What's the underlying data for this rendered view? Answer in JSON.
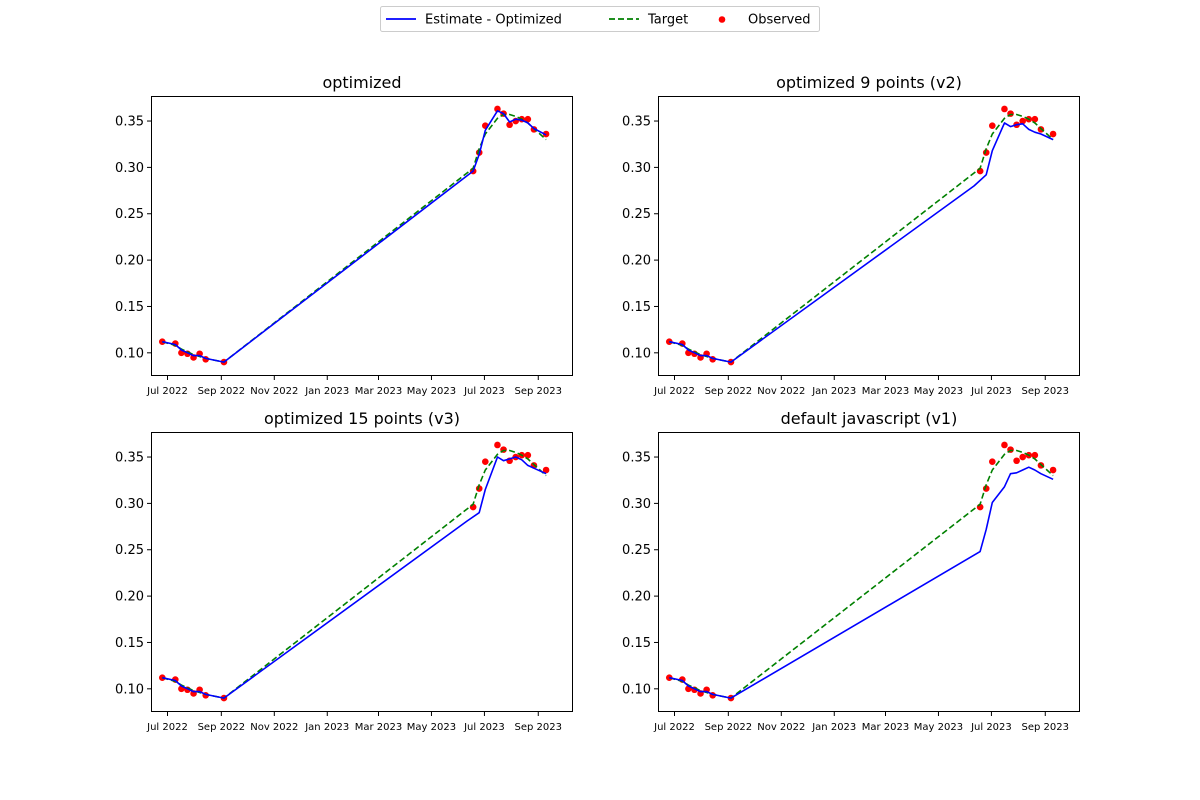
{
  "legend": {
    "placement": "top-center",
    "entries": [
      {
        "label": "Estimate - Optimized",
        "style": "solid-line",
        "color": "#0000ff"
      },
      {
        "label": "Target",
        "style": "dashed-line",
        "color": "#008000"
      },
      {
        "label": "Observed",
        "style": "marker",
        "color": "#ff0000"
      }
    ]
  },
  "chart_data": [
    {
      "type": "line",
      "title": "optimized",
      "xlabel": "",
      "ylabel": "",
      "xlim": [
        "2022-06-12",
        "2023-10-11"
      ],
      "ylim": [
        0.075,
        0.377
      ],
      "x_ticks": [
        {
          "date": "2022-07-01",
          "label": "Jul 2022"
        },
        {
          "date": "2022-09-01",
          "label": "Sep 2022"
        },
        {
          "date": "2022-11-01",
          "label": "Nov 2022"
        },
        {
          "date": "2023-01-01",
          "label": "Jan 2023"
        },
        {
          "date": "2023-03-01",
          "label": "Mar 2023"
        },
        {
          "date": "2023-05-01",
          "label": "May 2023"
        },
        {
          "date": "2023-07-01",
          "label": "Jul 2023"
        },
        {
          "date": "2023-09-01",
          "label": "Sep 2023"
        }
      ],
      "y_ticks": [
        0.1,
        0.15,
        0.2,
        0.25,
        0.3,
        0.35
      ],
      "y_tick_labels": [
        "0.10",
        "0.15",
        "0.20",
        "0.25",
        "0.30",
        "0.35"
      ],
      "grid": false,
      "series": [
        {
          "name": "Observed",
          "kind": "scatter",
          "color": "#ff0000",
          "x": [
            "2022-06-25",
            "2022-07-10",
            "2022-07-17",
            "2022-07-24",
            "2022-07-31",
            "2022-08-07",
            "2022-08-14",
            "2022-09-04",
            "2023-06-18",
            "2023-06-25",
            "2023-07-02",
            "2023-07-16",
            "2023-07-23",
            "2023-07-30",
            "2023-08-06",
            "2023-08-13",
            "2023-08-20",
            "2023-08-27",
            "2023-09-10"
          ],
          "y": [
            0.112,
            0.11,
            0.1,
            0.099,
            0.095,
            0.099,
            0.093,
            0.09,
            0.296,
            0.316,
            0.345,
            0.363,
            0.358,
            0.346,
            0.35,
            0.352,
            0.352,
            0.341,
            0.336
          ]
        },
        {
          "name": "Target",
          "kind": "dashed-line",
          "color": "#008000",
          "x": [
            "2022-06-25",
            "2022-07-10",
            "2022-07-17",
            "2022-07-24",
            "2022-07-31",
            "2022-08-07",
            "2022-08-14",
            "2022-09-04",
            "2023-06-18",
            "2023-06-25",
            "2023-07-02",
            "2023-07-16",
            "2023-07-23",
            "2023-07-30",
            "2023-08-06",
            "2023-08-13",
            "2023-08-20",
            "2023-08-27",
            "2023-09-10"
          ],
          "y": [
            0.112,
            0.108,
            0.104,
            0.101,
            0.098,
            0.096,
            0.094,
            0.09,
            0.299,
            0.32,
            0.336,
            0.353,
            0.357,
            0.357,
            0.355,
            0.352,
            0.348,
            0.342,
            0.33
          ]
        },
        {
          "name": "Estimate - Optimized",
          "kind": "solid-line",
          "color": "#0000ff",
          "x": [
            "2022-06-25",
            "2022-07-10",
            "2022-07-17",
            "2022-07-24",
            "2022-07-31",
            "2022-08-07",
            "2022-08-14",
            "2022-09-04",
            "2023-06-18",
            "2023-06-25",
            "2023-07-02",
            "2023-07-16",
            "2023-07-23",
            "2023-07-30",
            "2023-08-06",
            "2023-08-13",
            "2023-08-20",
            "2023-08-27",
            "2023-09-10"
          ],
          "y": [
            0.112,
            0.109,
            0.103,
            0.1,
            0.097,
            0.097,
            0.094,
            0.09,
            0.296,
            0.314,
            0.34,
            0.361,
            0.358,
            0.349,
            0.352,
            0.351,
            0.348,
            0.342,
            0.335
          ]
        }
      ]
    },
    {
      "type": "line",
      "title": "optimized 9 points (v2)",
      "xlabel": "",
      "ylabel": "",
      "xlim": [
        "2022-06-12",
        "2023-10-11"
      ],
      "ylim": [
        0.075,
        0.377
      ],
      "x_ticks": [
        {
          "date": "2022-07-01",
          "label": "Jul 2022"
        },
        {
          "date": "2022-09-01",
          "label": "Sep 2022"
        },
        {
          "date": "2022-11-01",
          "label": "Nov 2022"
        },
        {
          "date": "2023-01-01",
          "label": "Jan 2023"
        },
        {
          "date": "2023-03-01",
          "label": "Mar 2023"
        },
        {
          "date": "2023-05-01",
          "label": "May 2023"
        },
        {
          "date": "2023-07-01",
          "label": "Jul 2023"
        },
        {
          "date": "2023-09-01",
          "label": "Sep 2023"
        }
      ],
      "y_ticks": [
        0.1,
        0.15,
        0.2,
        0.25,
        0.3,
        0.35
      ],
      "y_tick_labels": [
        "0.10",
        "0.15",
        "0.20",
        "0.25",
        "0.30",
        "0.35"
      ],
      "grid": false,
      "series": [
        {
          "name": "Observed",
          "kind": "scatter",
          "color": "#ff0000",
          "x": [
            "2022-06-25",
            "2022-07-10",
            "2022-07-17",
            "2022-07-24",
            "2022-07-31",
            "2022-08-07",
            "2022-08-14",
            "2022-09-04",
            "2023-06-18",
            "2023-06-25",
            "2023-07-02",
            "2023-07-16",
            "2023-07-23",
            "2023-07-30",
            "2023-08-06",
            "2023-08-13",
            "2023-08-20",
            "2023-08-27",
            "2023-09-10"
          ],
          "y": [
            0.112,
            0.11,
            0.1,
            0.099,
            0.095,
            0.099,
            0.093,
            0.09,
            0.296,
            0.316,
            0.345,
            0.363,
            0.358,
            0.346,
            0.35,
            0.352,
            0.352,
            0.341,
            0.336
          ]
        },
        {
          "name": "Target",
          "kind": "dashed-line",
          "color": "#008000",
          "x": [
            "2022-06-25",
            "2022-07-10",
            "2022-07-17",
            "2022-07-24",
            "2022-07-31",
            "2022-08-07",
            "2022-08-14",
            "2022-09-04",
            "2023-06-18",
            "2023-06-25",
            "2023-07-02",
            "2023-07-16",
            "2023-07-23",
            "2023-07-30",
            "2023-08-06",
            "2023-08-13",
            "2023-08-20",
            "2023-08-27",
            "2023-09-10"
          ],
          "y": [
            0.112,
            0.108,
            0.104,
            0.101,
            0.098,
            0.096,
            0.094,
            0.09,
            0.299,
            0.32,
            0.336,
            0.353,
            0.357,
            0.357,
            0.355,
            0.352,
            0.348,
            0.342,
            0.33
          ]
        },
        {
          "name": "Estimate - Optimized",
          "kind": "solid-line",
          "color": "#0000ff",
          "x": [
            "2022-06-25",
            "2022-07-10",
            "2022-07-17",
            "2022-07-24",
            "2022-07-31",
            "2022-08-07",
            "2022-08-14",
            "2022-09-04",
            "2023-06-11",
            "2023-06-25",
            "2023-07-02",
            "2023-07-16",
            "2023-07-23",
            "2023-07-30",
            "2023-08-06",
            "2023-08-13",
            "2023-08-20",
            "2023-08-27",
            "2023-09-10"
          ],
          "y": [
            0.112,
            0.109,
            0.103,
            0.1,
            0.097,
            0.097,
            0.094,
            0.09,
            0.28,
            0.292,
            0.318,
            0.348,
            0.344,
            0.346,
            0.347,
            0.341,
            0.338,
            0.336,
            0.33
          ]
        }
      ]
    },
    {
      "type": "line",
      "title": "optimized 15 points (v3)",
      "xlabel": "",
      "ylabel": "",
      "xlim": [
        "2022-06-12",
        "2023-10-11"
      ],
      "ylim": [
        0.075,
        0.377
      ],
      "x_ticks": [
        {
          "date": "2022-07-01",
          "label": "Jul 2022"
        },
        {
          "date": "2022-09-01",
          "label": "Sep 2022"
        },
        {
          "date": "2022-11-01",
          "label": "Nov 2022"
        },
        {
          "date": "2023-01-01",
          "label": "Jan 2023"
        },
        {
          "date": "2023-03-01",
          "label": "Mar 2023"
        },
        {
          "date": "2023-05-01",
          "label": "May 2023"
        },
        {
          "date": "2023-07-01",
          "label": "Jul 2023"
        },
        {
          "date": "2023-09-01",
          "label": "Sep 2023"
        }
      ],
      "y_ticks": [
        0.1,
        0.15,
        0.2,
        0.25,
        0.3,
        0.35
      ],
      "y_tick_labels": [
        "0.10",
        "0.15",
        "0.20",
        "0.25",
        "0.30",
        "0.35"
      ],
      "grid": false,
      "series": [
        {
          "name": "Observed",
          "kind": "scatter",
          "color": "#ff0000",
          "x": [
            "2022-06-25",
            "2022-07-10",
            "2022-07-17",
            "2022-07-24",
            "2022-07-31",
            "2022-08-07",
            "2022-08-14",
            "2022-09-04",
            "2023-06-18",
            "2023-06-25",
            "2023-07-02",
            "2023-07-16",
            "2023-07-23",
            "2023-07-30",
            "2023-08-06",
            "2023-08-13",
            "2023-08-20",
            "2023-08-27",
            "2023-09-10"
          ],
          "y": [
            0.112,
            0.11,
            0.1,
            0.099,
            0.095,
            0.099,
            0.093,
            0.09,
            0.296,
            0.316,
            0.345,
            0.363,
            0.358,
            0.346,
            0.35,
            0.352,
            0.352,
            0.341,
            0.336
          ]
        },
        {
          "name": "Target",
          "kind": "dashed-line",
          "color": "#008000",
          "x": [
            "2022-06-25",
            "2022-07-10",
            "2022-07-17",
            "2022-07-24",
            "2022-07-31",
            "2022-08-07",
            "2022-08-14",
            "2022-09-04",
            "2023-06-18",
            "2023-06-25",
            "2023-07-02",
            "2023-07-16",
            "2023-07-23",
            "2023-07-30",
            "2023-08-06",
            "2023-08-13",
            "2023-08-20",
            "2023-08-27",
            "2023-09-10"
          ],
          "y": [
            0.112,
            0.108,
            0.104,
            0.101,
            0.098,
            0.096,
            0.094,
            0.09,
            0.299,
            0.32,
            0.336,
            0.353,
            0.357,
            0.357,
            0.355,
            0.352,
            0.348,
            0.342,
            0.33
          ]
        },
        {
          "name": "Estimate - Optimized",
          "kind": "solid-line",
          "color": "#0000ff",
          "x": [
            "2022-06-25",
            "2022-07-10",
            "2022-07-17",
            "2022-07-24",
            "2022-07-31",
            "2022-08-07",
            "2022-08-14",
            "2022-09-04",
            "2023-06-11",
            "2023-06-25",
            "2023-07-02",
            "2023-07-16",
            "2023-07-23",
            "2023-07-30",
            "2023-08-06",
            "2023-08-13",
            "2023-08-20",
            "2023-08-27",
            "2023-09-10"
          ],
          "y": [
            0.112,
            0.109,
            0.103,
            0.1,
            0.097,
            0.097,
            0.094,
            0.09,
            0.281,
            0.29,
            0.315,
            0.35,
            0.346,
            0.348,
            0.35,
            0.347,
            0.341,
            0.338,
            0.332
          ]
        }
      ]
    },
    {
      "type": "line",
      "title": "default javascript (v1)",
      "xlabel": "",
      "ylabel": "",
      "xlim": [
        "2022-06-12",
        "2023-10-11"
      ],
      "ylim": [
        0.075,
        0.377
      ],
      "x_ticks": [
        {
          "date": "2022-07-01",
          "label": "Jul 2022"
        },
        {
          "date": "2022-09-01",
          "label": "Sep 2022"
        },
        {
          "date": "2022-11-01",
          "label": "Nov 2022"
        },
        {
          "date": "2023-01-01",
          "label": "Jan 2023"
        },
        {
          "date": "2023-03-01",
          "label": "Mar 2023"
        },
        {
          "date": "2023-05-01",
          "label": "May 2023"
        },
        {
          "date": "2023-07-01",
          "label": "Jul 2023"
        },
        {
          "date": "2023-09-01",
          "label": "Sep 2023"
        }
      ],
      "y_ticks": [
        0.1,
        0.15,
        0.2,
        0.25,
        0.3,
        0.35
      ],
      "y_tick_labels": [
        "0.10",
        "0.15",
        "0.20",
        "0.25",
        "0.30",
        "0.35"
      ],
      "grid": false,
      "series": [
        {
          "name": "Observed",
          "kind": "scatter",
          "color": "#ff0000",
          "x": [
            "2022-06-25",
            "2022-07-10",
            "2022-07-17",
            "2022-07-24",
            "2022-07-31",
            "2022-08-07",
            "2022-08-14",
            "2022-09-04",
            "2023-06-18",
            "2023-06-25",
            "2023-07-02",
            "2023-07-16",
            "2023-07-23",
            "2023-07-30",
            "2023-08-06",
            "2023-08-13",
            "2023-08-20",
            "2023-08-27",
            "2023-09-10"
          ],
          "y": [
            0.112,
            0.11,
            0.1,
            0.099,
            0.095,
            0.099,
            0.093,
            0.09,
            0.296,
            0.316,
            0.345,
            0.363,
            0.358,
            0.346,
            0.35,
            0.352,
            0.352,
            0.341,
            0.336
          ]
        },
        {
          "name": "Target",
          "kind": "dashed-line",
          "color": "#008000",
          "x": [
            "2022-06-25",
            "2022-07-10",
            "2022-07-17",
            "2022-07-24",
            "2022-07-31",
            "2022-08-07",
            "2022-08-14",
            "2022-09-04",
            "2023-06-18",
            "2023-06-25",
            "2023-07-02",
            "2023-07-16",
            "2023-07-23",
            "2023-07-30",
            "2023-08-06",
            "2023-08-13",
            "2023-08-20",
            "2023-08-27",
            "2023-09-10"
          ],
          "y": [
            0.112,
            0.108,
            0.104,
            0.101,
            0.098,
            0.096,
            0.094,
            0.09,
            0.299,
            0.32,
            0.336,
            0.353,
            0.357,
            0.357,
            0.355,
            0.352,
            0.348,
            0.342,
            0.33
          ]
        },
        {
          "name": "Estimate - Optimized",
          "kind": "solid-line",
          "color": "#0000ff",
          "x": [
            "2022-06-25",
            "2022-07-10",
            "2022-07-17",
            "2022-07-24",
            "2022-07-31",
            "2022-08-07",
            "2022-08-14",
            "2022-09-04",
            "2023-06-18",
            "2023-06-25",
            "2023-07-02",
            "2023-07-16",
            "2023-07-23",
            "2023-07-30",
            "2023-08-06",
            "2023-08-13",
            "2023-08-20",
            "2023-08-27",
            "2023-09-10"
          ],
          "y": [
            0.112,
            0.109,
            0.103,
            0.1,
            0.097,
            0.097,
            0.094,
            0.09,
            0.248,
            0.272,
            0.301,
            0.318,
            0.332,
            0.333,
            0.336,
            0.339,
            0.336,
            0.332,
            0.326
          ]
        }
      ]
    }
  ]
}
